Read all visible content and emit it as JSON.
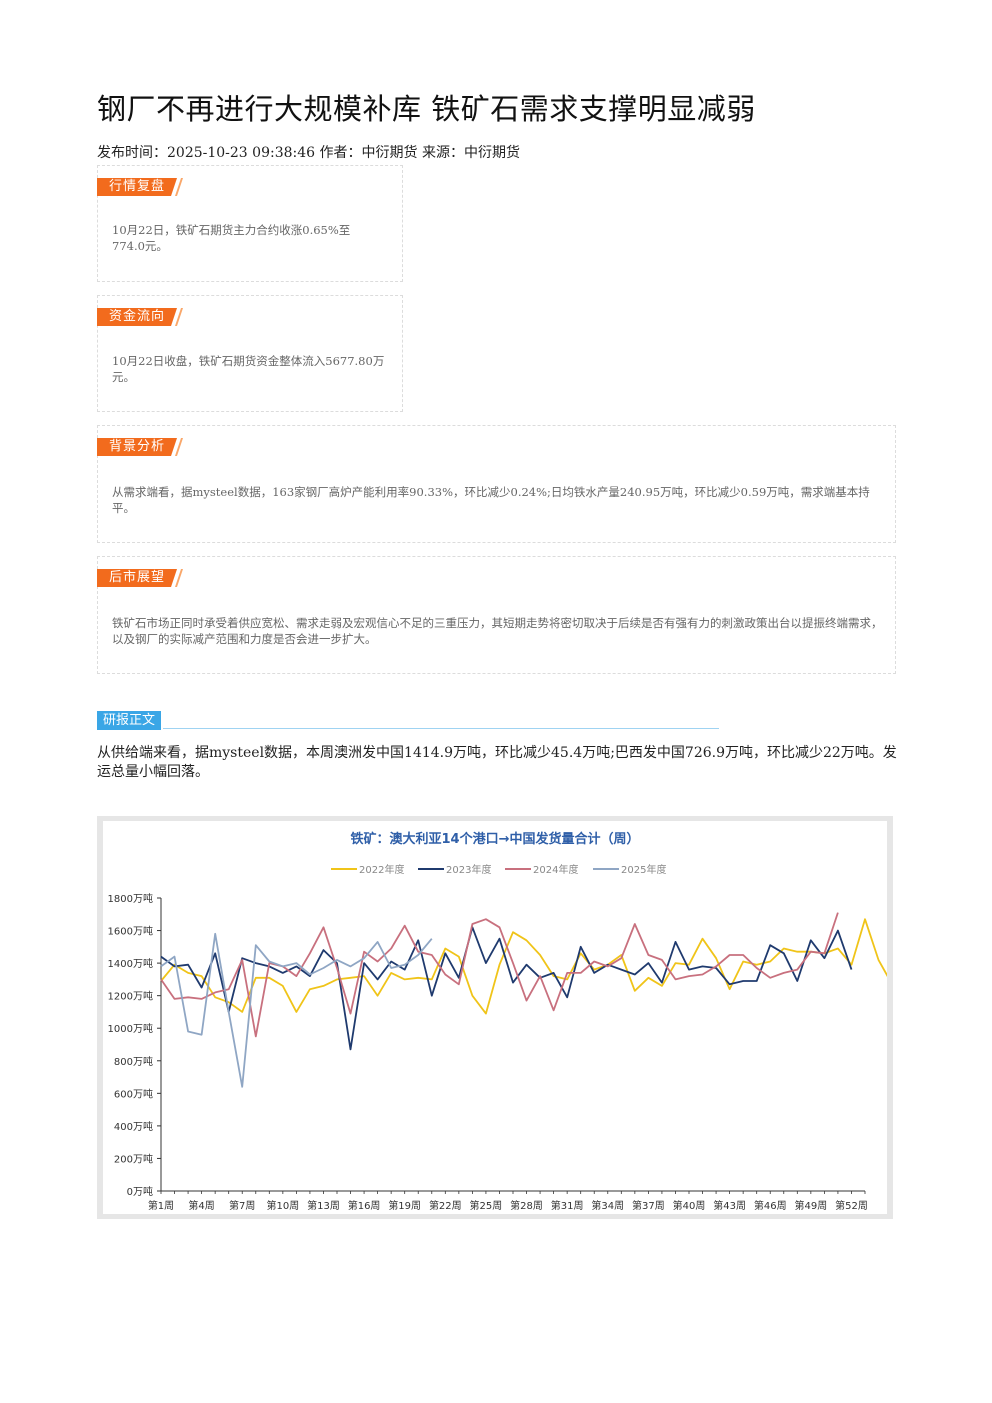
{
  "article": {
    "title": "钢厂不再进行大规模补库 铁矿石需求支撑明显减弱",
    "meta": "发布时间：2025-10-23 09:38:46 作者：中衍期货 来源：中衍期货"
  },
  "sections": [
    {
      "tag": "行情复盘",
      "text": "10月22日，铁矿石期货主力合约收涨0.65%至774.0元。"
    },
    {
      "tag": "资金流向",
      "text": "10月22日收盘，铁矿石期货资金整体流入5677.80万元。"
    },
    {
      "tag": "背景分析",
      "text": "从需求端看，据mysteel数据，163家钢厂高炉产能利用率90.33%，环比减少0.24%;日均铁水产量240.95万吨，环比减少0.59万吨，需求端基本持平。"
    },
    {
      "tag": "后市展望",
      "text": "铁矿石市场正同时承受着供应宽松、需求走弱及宏观信心不足的三重压力，其短期走势将密切取决于后续是否有强有力的刺激政策出台以提振终端需求，以及钢厂的实际减产范围和力度是否会进一步扩大。"
    }
  ],
  "report": {
    "tag": "研报正文",
    "paragraph": "从供给端来看，据mysteel数据，本周澳洲发中国1414.9万吨，环比减少45.4万吨;巴西发中国726.9万吨，环比减少22万吨。发运总量小幅回落。"
  },
  "chart_data": {
    "type": "line",
    "title": "铁矿：澳大利亚14个港口→中国发货量合计（周）",
    "xlabel": "",
    "ylabel": "",
    "ylim": [
      0,
      1800
    ],
    "yticks": [
      "0万吨",
      "200万吨",
      "400万吨",
      "600万吨",
      "800万吨",
      "1000万吨",
      "1200万吨",
      "1400万吨",
      "1600万吨",
      "1800万吨"
    ],
    "xticks": [
      "第1周",
      "第4周",
      "第7周",
      "第10周",
      "第13周",
      "第16周",
      "第19周",
      "第22周",
      "第25周",
      "第28周",
      "第31周",
      "第34周",
      "第37周",
      "第40周",
      "第43周",
      "第46周",
      "第49周",
      "第52周"
    ],
    "legend_position": "top",
    "series": [
      {
        "name": "2022年度",
        "color": "#f0c419",
        "values": [
          1290,
          1390,
          1340,
          1320,
          1190,
          1160,
          1100,
          1310,
          1310,
          1260,
          1100,
          1240,
          1260,
          1300,
          1310,
          1320,
          1200,
          1340,
          1300,
          1310,
          1300,
          1490,
          1440,
          1200,
          1090,
          1390,
          1590,
          1540,
          1450,
          1320,
          1300,
          1460,
          1360,
          1390,
          1450,
          1230,
          1310,
          1260,
          1400,
          1390,
          1550,
          1430,
          1240,
          1410,
          1390,
          1410,
          1490,
          1470,
          1470,
          1460,
          1490,
          1390,
          1670,
          1420,
          1270
        ]
      },
      {
        "name": "2023年度",
        "color": "#1f3a6e",
        "values": [
          1440,
          1380,
          1390,
          1250,
          1460,
          1100,
          1430,
          1400,
          1380,
          1340,
          1380,
          1320,
          1480,
          1400,
          870,
          1400,
          1300,
          1410,
          1360,
          1540,
          1200,
          1460,
          1310,
          1620,
          1400,
          1550,
          1280,
          1390,
          1310,
          1340,
          1190,
          1500,
          1340,
          1390,
          1360,
          1330,
          1400,
          1280,
          1530,
          1360,
          1380,
          1370,
          1270,
          1290,
          1290,
          1510,
          1460,
          1290,
          1540,
          1430,
          1600,
          1360
        ]
      },
      {
        "name": "2024年度",
        "color": "#c8707e",
        "values": [
          1300,
          1180,
          1190,
          1180,
          1220,
          1240,
          1420,
          950,
          1400,
          1380,
          1320,
          1460,
          1620,
          1370,
          1090,
          1470,
          1410,
          1490,
          1630,
          1470,
          1450,
          1330,
          1270,
          1640,
          1670,
          1620,
          1400,
          1170,
          1320,
          1110,
          1340,
          1340,
          1410,
          1380,
          1430,
          1640,
          1450,
          1420,
          1300,
          1320,
          1330,
          1380,
          1450,
          1450,
          1370,
          1310,
          1340,
          1360,
          1470,
          1460,
          1710
        ]
      },
      {
        "name": "2025年度",
        "color": "#8fa6c4",
        "values": [
          1380,
          1440,
          980,
          960,
          1580,
          1100,
          640,
          1510,
          1410,
          1380,
          1400,
          1330,
          1370,
          1420,
          1380,
          1430,
          1530,
          1370,
          1390,
          1450,
          1550
        ]
      }
    ]
  }
}
